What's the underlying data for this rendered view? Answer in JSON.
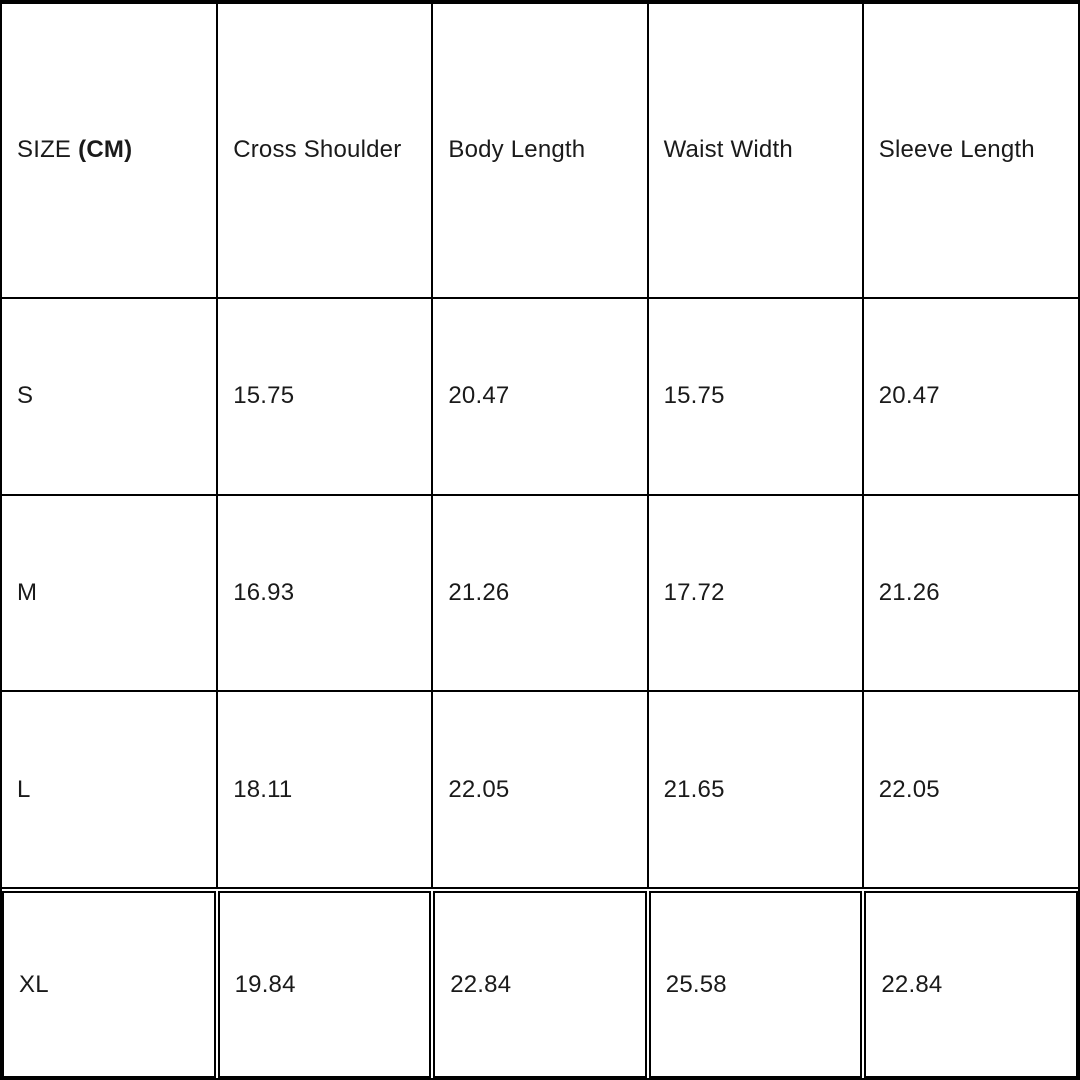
{
  "size_chart": {
    "header": {
      "size_label": "SIZE",
      "size_unit": "(CM)",
      "columns": [
        "Cross Shoulder",
        "Body Length",
        "Waist Width",
        "Sleeve Length"
      ]
    },
    "rows": [
      {
        "size": "S",
        "values": [
          "15.75",
          "20.47",
          "15.75",
          "20.47"
        ]
      },
      {
        "size": "M",
        "values": [
          "16.93",
          "21.26",
          "17.72",
          "21.26"
        ]
      },
      {
        "size": "L",
        "values": [
          "18.11",
          "22.05",
          "21.65",
          "22.05"
        ]
      },
      {
        "size": "XL",
        "values": [
          "19.84",
          "22.84",
          "25.58",
          "22.84"
        ]
      }
    ],
    "colors": {
      "border": "#000000",
      "text": "#1a1a1a",
      "background": "#ffffff"
    }
  },
  "chart_data": {
    "type": "table",
    "title": "SIZE (CM)",
    "columns": [
      "SIZE (CM)",
      "Cross Shoulder",
      "Body Length",
      "Waist Width",
      "Sleeve Length"
    ],
    "rows": [
      [
        "S",
        15.75,
        20.47,
        15.75,
        20.47
      ],
      [
        "M",
        16.93,
        21.26,
        17.72,
        21.26
      ],
      [
        "L",
        18.11,
        22.05,
        21.65,
        22.05
      ],
      [
        "XL",
        19.84,
        22.84,
        25.58,
        22.84
      ]
    ],
    "unit": "CM",
    "layout": {
      "grid": true,
      "header_row": true,
      "columns_equal_width": true
    }
  }
}
